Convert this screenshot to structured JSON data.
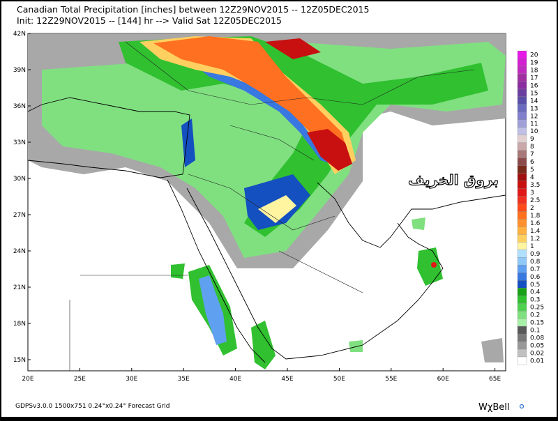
{
  "header": {
    "line1": "Canadian Total Precipitation [inches] between 12Z29NOV2015 -- 12Z05DEC2015",
    "line2": "Init: 12Z29NOV2015 -- [144] hr --> Valid Sat 12Z05DEC2015"
  },
  "map": {
    "lat_labels": [
      "42N",
      "39N",
      "36N",
      "33N",
      "30N",
      "27N",
      "24N",
      "21N",
      "18N",
      "15N"
    ],
    "lon_labels": [
      "20E",
      "25E",
      "30E",
      "35E",
      "40E",
      "45E",
      "50E",
      "55E",
      "60E",
      "65E"
    ],
    "watermark": "بروق الخريف"
  },
  "legend": {
    "items": [
      {
        "label": "20",
        "color": "#e619e6"
      },
      {
        "label": "19",
        "color": "#d21fd2"
      },
      {
        "label": "18",
        "color": "#bf2bbf"
      },
      {
        "label": "17",
        "color": "#a030a0"
      },
      {
        "label": "16",
        "color": "#8a2d9e"
      },
      {
        "label": "15",
        "color": "#6b3fa0"
      },
      {
        "label": "14",
        "color": "#5a4fa8"
      },
      {
        "label": "13",
        "color": "#6a6ac0"
      },
      {
        "label": "12",
        "color": "#8080cc"
      },
      {
        "label": "11",
        "color": "#a0a0d8"
      },
      {
        "label": "10",
        "color": "#c0c0e6"
      },
      {
        "label": "9",
        "color": "#e0d0d0"
      },
      {
        "label": "8",
        "color": "#c8a8a8"
      },
      {
        "label": "7",
        "color": "#a87878"
      },
      {
        "label": "6",
        "color": "#8c4a4a"
      },
      {
        "label": "5",
        "color": "#7a2a1a"
      },
      {
        "label": "4",
        "color": "#a01010"
      },
      {
        "label": "3.5",
        "color": "#c81010"
      },
      {
        "label": "3",
        "color": "#e01818"
      },
      {
        "label": "2.5",
        "color": "#f03020"
      },
      {
        "label": "2",
        "color": "#ff4a1a"
      },
      {
        "label": "1.8",
        "color": "#ff7020"
      },
      {
        "label": "1.6",
        "color": "#ff9030"
      },
      {
        "label": "1.4",
        "color": "#ffb040"
      },
      {
        "label": "1.2",
        "color": "#ffd060"
      },
      {
        "label": "1",
        "color": "#fff4a0"
      },
      {
        "label": "0.9",
        "color": "#b0e0ff"
      },
      {
        "label": "0.8",
        "color": "#90c8f8"
      },
      {
        "label": "0.7",
        "color": "#60a0f0"
      },
      {
        "label": "0.6",
        "color": "#3878e0"
      },
      {
        "label": "0.5",
        "color": "#1450c0"
      },
      {
        "label": "0.4",
        "color": "#18a018"
      },
      {
        "label": "0.3",
        "color": "#30c030"
      },
      {
        "label": "0.25",
        "color": "#50d050"
      },
      {
        "label": "0.2",
        "color": "#80e080"
      },
      {
        "label": "0.15",
        "color": "#a8f0a8"
      },
      {
        "label": "0.1",
        "color": "#585858"
      },
      {
        "label": "0.08",
        "color": "#787878"
      },
      {
        "label": "0.05",
        "color": "#989898"
      },
      {
        "label": "0.02",
        "color": "#c0c0c0"
      },
      {
        "label": "0.01",
        "color": "#ffffff"
      }
    ]
  },
  "footer": {
    "left": "GDPSv3.0.0 1500x751 0.24°x0.24° Forecast Grid",
    "brand": "WχBell"
  }
}
